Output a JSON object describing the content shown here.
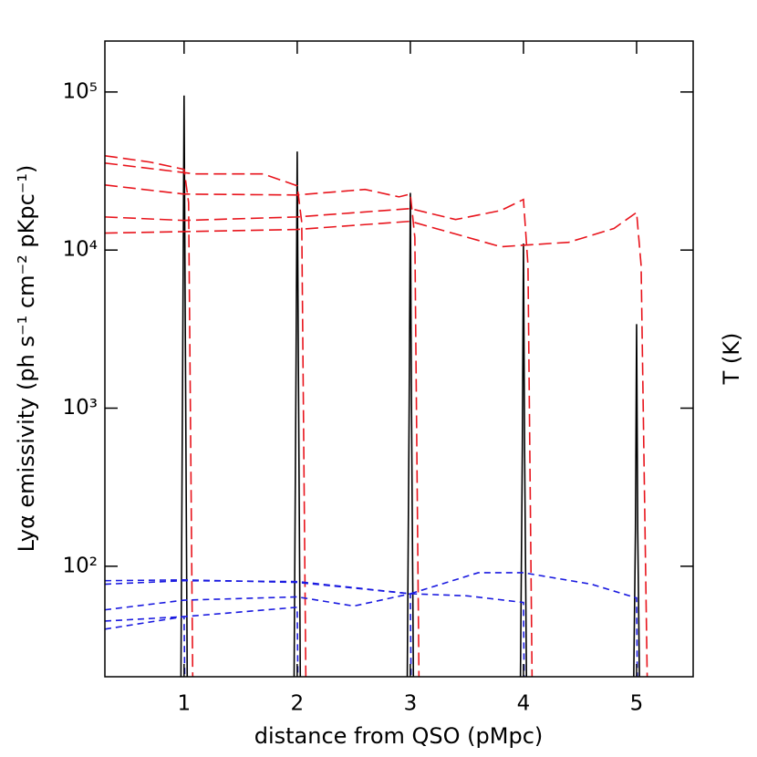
{
  "chart_data": {
    "type": "line",
    "xlabel": "distance from QSO (pMpc)",
    "ylabel": "Lyα emissivity (ph s⁻¹ cm⁻² pKpc⁻¹)",
    "y2label": "T (K)",
    "xlim": [
      0.3,
      5.5
    ],
    "xticks": [
      1,
      2,
      3,
      4,
      5
    ],
    "ylim": [
      20,
      210000
    ],
    "yscale": "log",
    "yticks": [
      {
        "value": 100,
        "label": "10²"
      },
      {
        "value": 1000,
        "label": "10³"
      },
      {
        "value": 10000,
        "label": "10⁴"
      },
      {
        "value": 100000,
        "label": "10⁵"
      }
    ],
    "series": [
      {
        "color": "#000000",
        "dash": "none",
        "x": [
          0.97,
          0.99,
          1.0,
          1.01,
          1.03,
          1.5,
          1.97,
          1.99,
          2.0,
          2.01,
          2.03,
          2.5,
          2.97,
          2.99,
          3.0,
          3.01,
          3.03,
          3.5,
          3.97,
          3.99,
          4.0,
          4.01,
          4.03,
          4.5,
          4.97,
          4.99,
          5.0,
          5.01,
          5.03
        ],
        "values": [
          10,
          4000,
          95000,
          4000,
          10,
          null,
          10,
          2000,
          42000,
          2000,
          10,
          null,
          10,
          1100,
          23000,
          1100,
          10,
          null,
          10,
          550,
          11000,
          550,
          10,
          null,
          10,
          170,
          3400,
          170,
          10
        ]
      },
      {
        "color": "#e8141c",
        "dash": "14 6",
        "x": [
          0.3,
          0.7,
          1.0,
          1.04,
          1.08
        ],
        "values": [
          39500,
          36000,
          32400,
          20000,
          10
        ]
      },
      {
        "color": "#e8141c",
        "dash": "14 6",
        "x": [
          0.3,
          1.1,
          1.7,
          2.0,
          2.04,
          2.08
        ],
        "values": [
          35500,
          30300,
          30300,
          25500,
          15000,
          10
        ]
      },
      {
        "color": "#e8141c",
        "dash": "14 6",
        "x": [
          0.3,
          1.0,
          2.0,
          2.6,
          2.9,
          3.0,
          3.04,
          3.08
        ],
        "values": [
          25800,
          22600,
          22300,
          24200,
          21700,
          22600,
          12000,
          10
        ]
      },
      {
        "color": "#e8141c",
        "dash": "14 6",
        "x": [
          0.3,
          1.0,
          2.0,
          3.0,
          3.4,
          3.8,
          4.0,
          4.04,
          4.08
        ],
        "values": [
          16200,
          15400,
          16200,
          18300,
          15600,
          17800,
          20900,
          8000,
          10
        ]
      },
      {
        "color": "#e8141c",
        "dash": "14 6",
        "x": [
          0.3,
          2.0,
          3.0,
          3.8,
          4.4,
          4.8,
          5.0,
          5.04,
          5.1
        ],
        "values": [
          12800,
          13500,
          15200,
          10500,
          11200,
          13700,
          17300,
          8000,
          10
        ]
      },
      {
        "color": "#1a1ae0",
        "dash": "7 5",
        "x": [
          0.3,
          1.0,
          1.01
        ],
        "values": [
          40,
          48,
          10
        ]
      },
      {
        "color": "#1a1ae0",
        "dash": "7 5",
        "x": [
          0.3,
          1.0,
          2.0,
          2.01
        ],
        "values": [
          45,
          48,
          55,
          10
        ]
      },
      {
        "color": "#1a1ae0",
        "dash": "7 5",
        "x": [
          0.3,
          1.0,
          2.0,
          2.5,
          3.0,
          3.01
        ],
        "values": [
          53,
          61,
          64,
          56,
          67,
          10
        ]
      },
      {
        "color": "#1a1ae0",
        "dash": "7 5",
        "x": [
          0.3,
          1.0,
          2.0,
          3.0,
          3.5,
          4.0,
          4.01
        ],
        "values": [
          77,
          81,
          80,
          67,
          65,
          59,
          10
        ]
      },
      {
        "color": "#1a1ae0",
        "dash": "7 5",
        "x": [
          0.3,
          1.0,
          2.0,
          3.0,
          3.6,
          4.0,
          4.6,
          5.0,
          5.01
        ],
        "values": [
          81,
          82,
          79,
          67,
          91,
          91,
          77,
          63,
          10
        ]
      }
    ]
  }
}
